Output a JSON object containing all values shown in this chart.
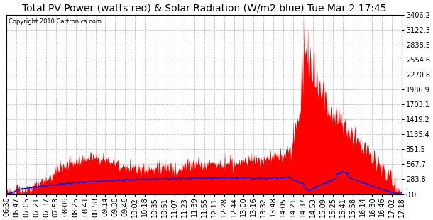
{
  "title": "Total PV Power (watts red) & Solar Radiation (W/m2 blue) Tue Mar 2 17:45",
  "copyright_text": "Copyright 2010 Cartronics.com",
  "background_color": "#ffffff",
  "plot_bg_color": "#ffffff",
  "grid_color": "#888888",
  "y_max": 3406.2,
  "y_min": 0.0,
  "y_ticks": [
    0.0,
    283.8,
    567.7,
    851.5,
    1135.4,
    1419.2,
    1703.1,
    1986.9,
    2270.8,
    2554.6,
    2838.5,
    3122.3,
    3406.2
  ],
  "x_tick_labels": [
    "06:30",
    "06:47",
    "07:05",
    "07:21",
    "07:37",
    "07:53",
    "08:09",
    "08:25",
    "08:41",
    "08:58",
    "09:14",
    "09:30",
    "09:46",
    "10:02",
    "10:18",
    "10:35",
    "10:51",
    "11:07",
    "11:23",
    "11:39",
    "11:55",
    "12:11",
    "12:28",
    "12:44",
    "13:00",
    "13:16",
    "13:32",
    "13:48",
    "14:05",
    "14:21",
    "14:37",
    "14:53",
    "15:09",
    "15:25",
    "15:41",
    "15:58",
    "16:14",
    "16:30",
    "16:46",
    "17:02",
    "17:18"
  ],
  "red_fill_color": "#ff0000",
  "blue_line_color": "#0000ff",
  "title_fontsize": 10,
  "tick_fontsize": 7
}
